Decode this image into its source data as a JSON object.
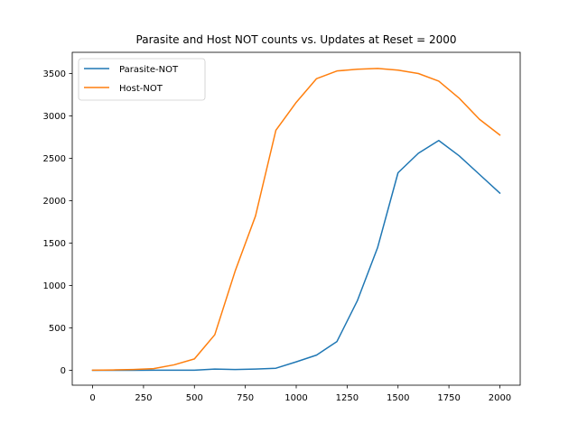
{
  "chart_data": {
    "type": "line",
    "title": "Parasite and Host NOT counts vs. Updates at Reset = 2000",
    "xlabel": "",
    "ylabel": "",
    "xlim": [
      -100,
      2100
    ],
    "ylim": [
      -175,
      3750
    ],
    "xticks": [
      0,
      250,
      500,
      750,
      1000,
      1250,
      1500,
      1750,
      2000
    ],
    "yticks": [
      0,
      500,
      1000,
      1500,
      2000,
      2500,
      3000,
      3500
    ],
    "grid": false,
    "legend_position": "top-left",
    "x": [
      0,
      100,
      200,
      300,
      400,
      500,
      600,
      700,
      800,
      900,
      1000,
      1100,
      1200,
      1300,
      1400,
      1500,
      1600,
      1700,
      1800,
      1900,
      2000
    ],
    "series": [
      {
        "name": "Parasite-NOT",
        "color": "#1f77b4",
        "values": [
          0,
          0,
          0,
          2,
          2,
          2,
          15,
          10,
          15,
          25,
          100,
          180,
          340,
          820,
          1450,
          2330,
          2560,
          2710,
          2530,
          2310,
          2090
        ]
      },
      {
        "name": "Host-NOT",
        "color": "#ff7f0e",
        "values": [
          2,
          5,
          10,
          20,
          65,
          135,
          420,
          1170,
          1820,
          2830,
          3160,
          3440,
          3530,
          3550,
          3560,
          3540,
          3500,
          3410,
          3210,
          2960,
          2775
        ]
      }
    ]
  }
}
